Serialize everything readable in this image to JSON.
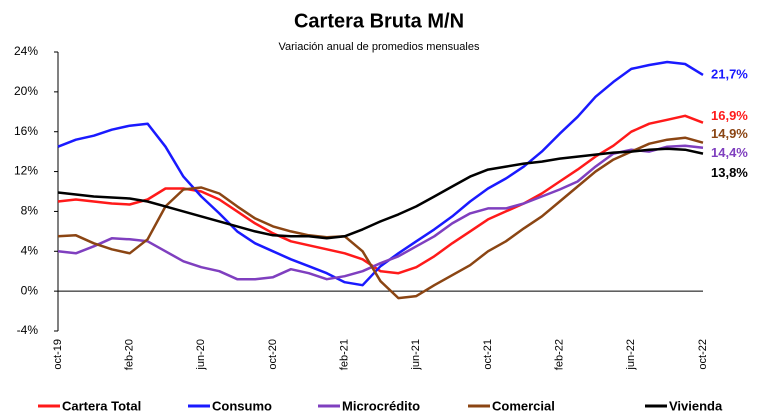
{
  "chart_data": {
    "type": "line",
    "title": "Cartera Bruta M/N",
    "subtitle": "Variación anual de promedios mensuales",
    "categories": [
      "oct-19",
      null,
      null,
      null,
      "feb-20",
      null,
      null,
      null,
      "jun-20",
      null,
      null,
      null,
      "oct-20",
      null,
      null,
      null,
      "feb-21",
      null,
      null,
      null,
      "jun-21",
      null,
      null,
      null,
      "oct-21",
      null,
      null,
      null,
      "feb-22",
      null,
      null,
      null,
      "jun-22",
      null,
      null,
      null,
      "oct-22"
    ],
    "ylim": [
      -4,
      24
    ],
    "yticks": [
      {
        "value": -4,
        "label": "-4%"
      },
      {
        "value": 0,
        "label": "0%"
      },
      {
        "value": 4,
        "label": "4%"
      },
      {
        "value": 8,
        "label": "8%"
      },
      {
        "value": 12,
        "label": "12%"
      },
      {
        "value": 16,
        "label": "16%"
      },
      {
        "value": 20,
        "label": "20%"
      },
      {
        "value": 24,
        "label": "24%"
      }
    ],
    "series": [
      {
        "name": "Cartera Total",
        "color": "#ff1a1a",
        "values": [
          9.0,
          9.2,
          9.0,
          8.8,
          8.7,
          9.2,
          10.3,
          10.3,
          10.0,
          9.2,
          8.0,
          6.8,
          5.8,
          5.0,
          4.6,
          4.2,
          3.8,
          3.2,
          2.0,
          1.8,
          2.4,
          3.5,
          4.8,
          6.0,
          7.2,
          8.0,
          8.8,
          9.8,
          11.0,
          12.2,
          13.5,
          14.6,
          16.0,
          16.8,
          17.2,
          17.6,
          16.9
        ],
        "value_labels": [
          null,
          null,
          null,
          null,
          null,
          null,
          null,
          null,
          null,
          null,
          null,
          null,
          null,
          null,
          null,
          null,
          null,
          null,
          null,
          null,
          null,
          null,
          null,
          null,
          null,
          null,
          null,
          null,
          null,
          null,
          null,
          null,
          null,
          null,
          null,
          null,
          "16,9%"
        ]
      },
      {
        "name": "Consumo",
        "color": "#1a1aff",
        "values": [
          14.5,
          15.2,
          15.6,
          16.2,
          16.6,
          16.8,
          14.5,
          11.5,
          9.5,
          7.8,
          6.0,
          4.8,
          4.0,
          3.2,
          2.5,
          1.8,
          0.9,
          0.6,
          2.5,
          3.8,
          5.0,
          6.2,
          7.5,
          9.0,
          10.3,
          11.3,
          12.5,
          14.0,
          15.8,
          17.5,
          19.5,
          21.0,
          22.3,
          22.7,
          23.0,
          22.8,
          21.7
        ],
        "value_labels": [
          null,
          null,
          null,
          null,
          null,
          null,
          null,
          null,
          null,
          null,
          null,
          null,
          null,
          null,
          null,
          null,
          null,
          null,
          null,
          null,
          null,
          null,
          null,
          null,
          null,
          null,
          null,
          null,
          null,
          null,
          null,
          null,
          null,
          null,
          null,
          null,
          "21,7%"
        ]
      },
      {
        "name": "Microcrédito",
        "color": "#7f3fbf",
        "values": [
          4.0,
          3.8,
          4.5,
          5.3,
          5.2,
          5.0,
          4.0,
          3.0,
          2.4,
          2.0,
          1.2,
          1.2,
          1.4,
          2.2,
          1.8,
          1.2,
          1.5,
          2.0,
          2.8,
          3.5,
          4.5,
          5.5,
          6.8,
          7.8,
          8.3,
          8.3,
          8.8,
          9.5,
          10.2,
          11.0,
          12.5,
          13.8,
          14.2,
          14.0,
          14.5,
          14.6,
          14.4
        ],
        "value_labels": [
          null,
          null,
          null,
          null,
          null,
          null,
          null,
          null,
          null,
          null,
          null,
          null,
          null,
          null,
          null,
          null,
          null,
          null,
          null,
          null,
          null,
          null,
          null,
          null,
          null,
          null,
          null,
          null,
          null,
          null,
          null,
          null,
          null,
          null,
          null,
          null,
          "14,4%"
        ]
      },
      {
        "name": "Comercial",
        "color": "#8b4513",
        "values": [
          5.5,
          5.6,
          4.8,
          4.2,
          3.8,
          5.2,
          8.5,
          10.2,
          10.4,
          9.8,
          8.5,
          7.3,
          6.5,
          6.0,
          5.6,
          5.4,
          5.5,
          4.0,
          1.0,
          -0.7,
          -0.5,
          0.6,
          1.6,
          2.6,
          4.0,
          5.0,
          6.3,
          7.5,
          9.0,
          10.5,
          12.0,
          13.2,
          14.0,
          14.8,
          15.2,
          15.4,
          14.9
        ],
        "value_labels": [
          null,
          null,
          null,
          null,
          null,
          null,
          null,
          null,
          null,
          null,
          null,
          null,
          null,
          null,
          null,
          null,
          null,
          null,
          null,
          null,
          null,
          null,
          null,
          null,
          null,
          null,
          null,
          null,
          null,
          null,
          null,
          null,
          null,
          null,
          null,
          null,
          "14,9%"
        ]
      },
      {
        "name": "Vivienda",
        "color": "#000000",
        "values": [
          9.9,
          9.7,
          9.5,
          9.4,
          9.3,
          9.0,
          8.5,
          8.0,
          7.5,
          7.0,
          6.5,
          6.0,
          5.6,
          5.5,
          5.5,
          5.3,
          5.5,
          6.2,
          7.0,
          7.7,
          8.5,
          9.5,
          10.5,
          11.5,
          12.2,
          12.5,
          12.8,
          13.0,
          13.3,
          13.5,
          13.7,
          13.9,
          14.0,
          14.2,
          14.3,
          14.2,
          13.8
        ],
        "value_labels": [
          null,
          null,
          null,
          null,
          null,
          null,
          null,
          null,
          null,
          null,
          null,
          null,
          null,
          null,
          null,
          null,
          null,
          null,
          null,
          null,
          null,
          null,
          null,
          null,
          null,
          null,
          null,
          null,
          null,
          null,
          null,
          null,
          null,
          null,
          null,
          null,
          "13,8%"
        ]
      }
    ]
  }
}
